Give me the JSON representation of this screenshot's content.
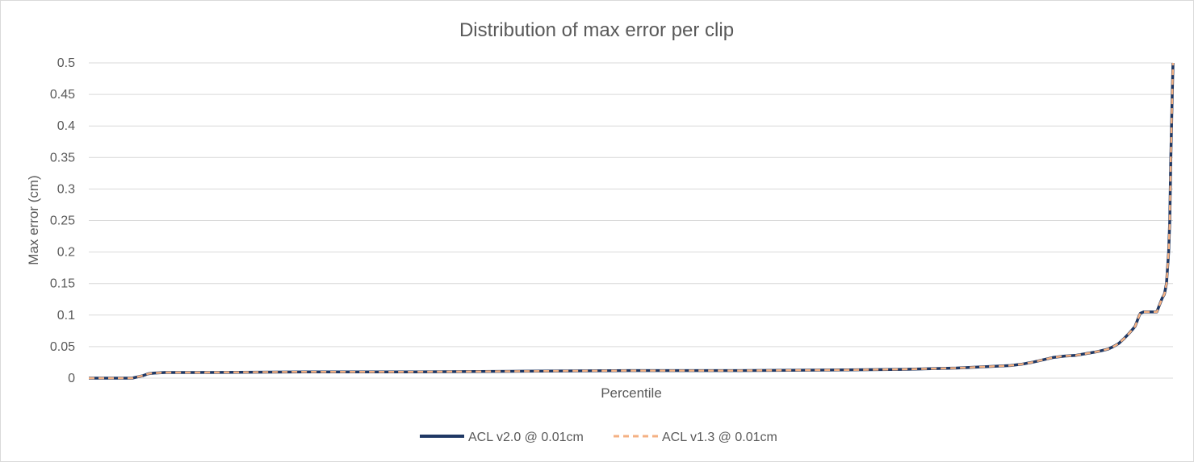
{
  "colors": {
    "series_1": "#1f3864",
    "series_2": "#f4b183",
    "grid": "#d9d9d9",
    "text": "#595959"
  },
  "chart_data": {
    "type": "line",
    "title": "Distribution of max error per clip",
    "xlabel": "Percentile",
    "ylabel": "Max error (cm)",
    "xlim": [
      0,
      100
    ],
    "ylim": [
      0,
      0.5
    ],
    "yticks": [
      "0",
      "0.05",
      "0.1",
      "0.15",
      "0.2",
      "0.25",
      "0.3",
      "0.35",
      "0.4",
      "0.45",
      "0.5"
    ],
    "grid": true,
    "legend_position": "bottom",
    "series": [
      {
        "name": "ACL v2.0 @ 0.01cm",
        "color": "#1f3864",
        "style": "solid",
        "x": [
          0,
          1,
          2,
          3,
          4,
          4.5,
          5,
          5.5,
          6,
          7,
          10,
          20,
          30,
          40,
          50,
          60,
          70,
          75,
          80,
          85,
          86,
          87,
          88,
          89,
          90,
          91,
          92,
          93,
          94,
          94.5,
          95,
          95.5,
          96,
          96.5,
          96.9,
          97,
          97.3,
          98,
          98.3,
          98.5,
          99,
          99.2,
          99.4,
          99.6,
          99.7,
          99.8,
          99.9,
          100
        ],
        "y": [
          0,
          0,
          0,
          0,
          0,
          0.002,
          0.004,
          0.007,
          0.008,
          0.009,
          0.009,
          0.01,
          0.01,
          0.011,
          0.012,
          0.012,
          0.013,
          0.014,
          0.016,
          0.02,
          0.022,
          0.025,
          0.029,
          0.033,
          0.035,
          0.036,
          0.039,
          0.042,
          0.046,
          0.05,
          0.055,
          0.063,
          0.072,
          0.082,
          0.1,
          0.103,
          0.105,
          0.105,
          0.105,
          0.105,
          0.127,
          0.133,
          0.15,
          0.2,
          0.25,
          0.35,
          0.43,
          0.5
        ]
      },
      {
        "name": "ACL v1.3 @ 0.01cm",
        "color": "#f4b183",
        "style": "dashed",
        "x": [
          0,
          1,
          2,
          3,
          4,
          4.5,
          5,
          5.5,
          6,
          7,
          10,
          20,
          30,
          40,
          50,
          60,
          70,
          75,
          80,
          85,
          86,
          87,
          88,
          89,
          90,
          91,
          92,
          93,
          94,
          94.5,
          95,
          95.5,
          96,
          96.5,
          96.9,
          97,
          97.3,
          98,
          98.3,
          98.5,
          99,
          99.2,
          99.4,
          99.6,
          99.7,
          99.8,
          99.9,
          100
        ],
        "y": [
          0,
          0,
          0,
          0,
          0,
          0.002,
          0.004,
          0.007,
          0.008,
          0.009,
          0.009,
          0.01,
          0.01,
          0.011,
          0.012,
          0.012,
          0.013,
          0.014,
          0.016,
          0.02,
          0.022,
          0.025,
          0.029,
          0.033,
          0.035,
          0.036,
          0.039,
          0.042,
          0.046,
          0.05,
          0.055,
          0.063,
          0.072,
          0.082,
          0.1,
          0.103,
          0.105,
          0.105,
          0.105,
          0.105,
          0.127,
          0.133,
          0.15,
          0.2,
          0.25,
          0.35,
          0.43,
          0.5
        ]
      }
    ]
  }
}
